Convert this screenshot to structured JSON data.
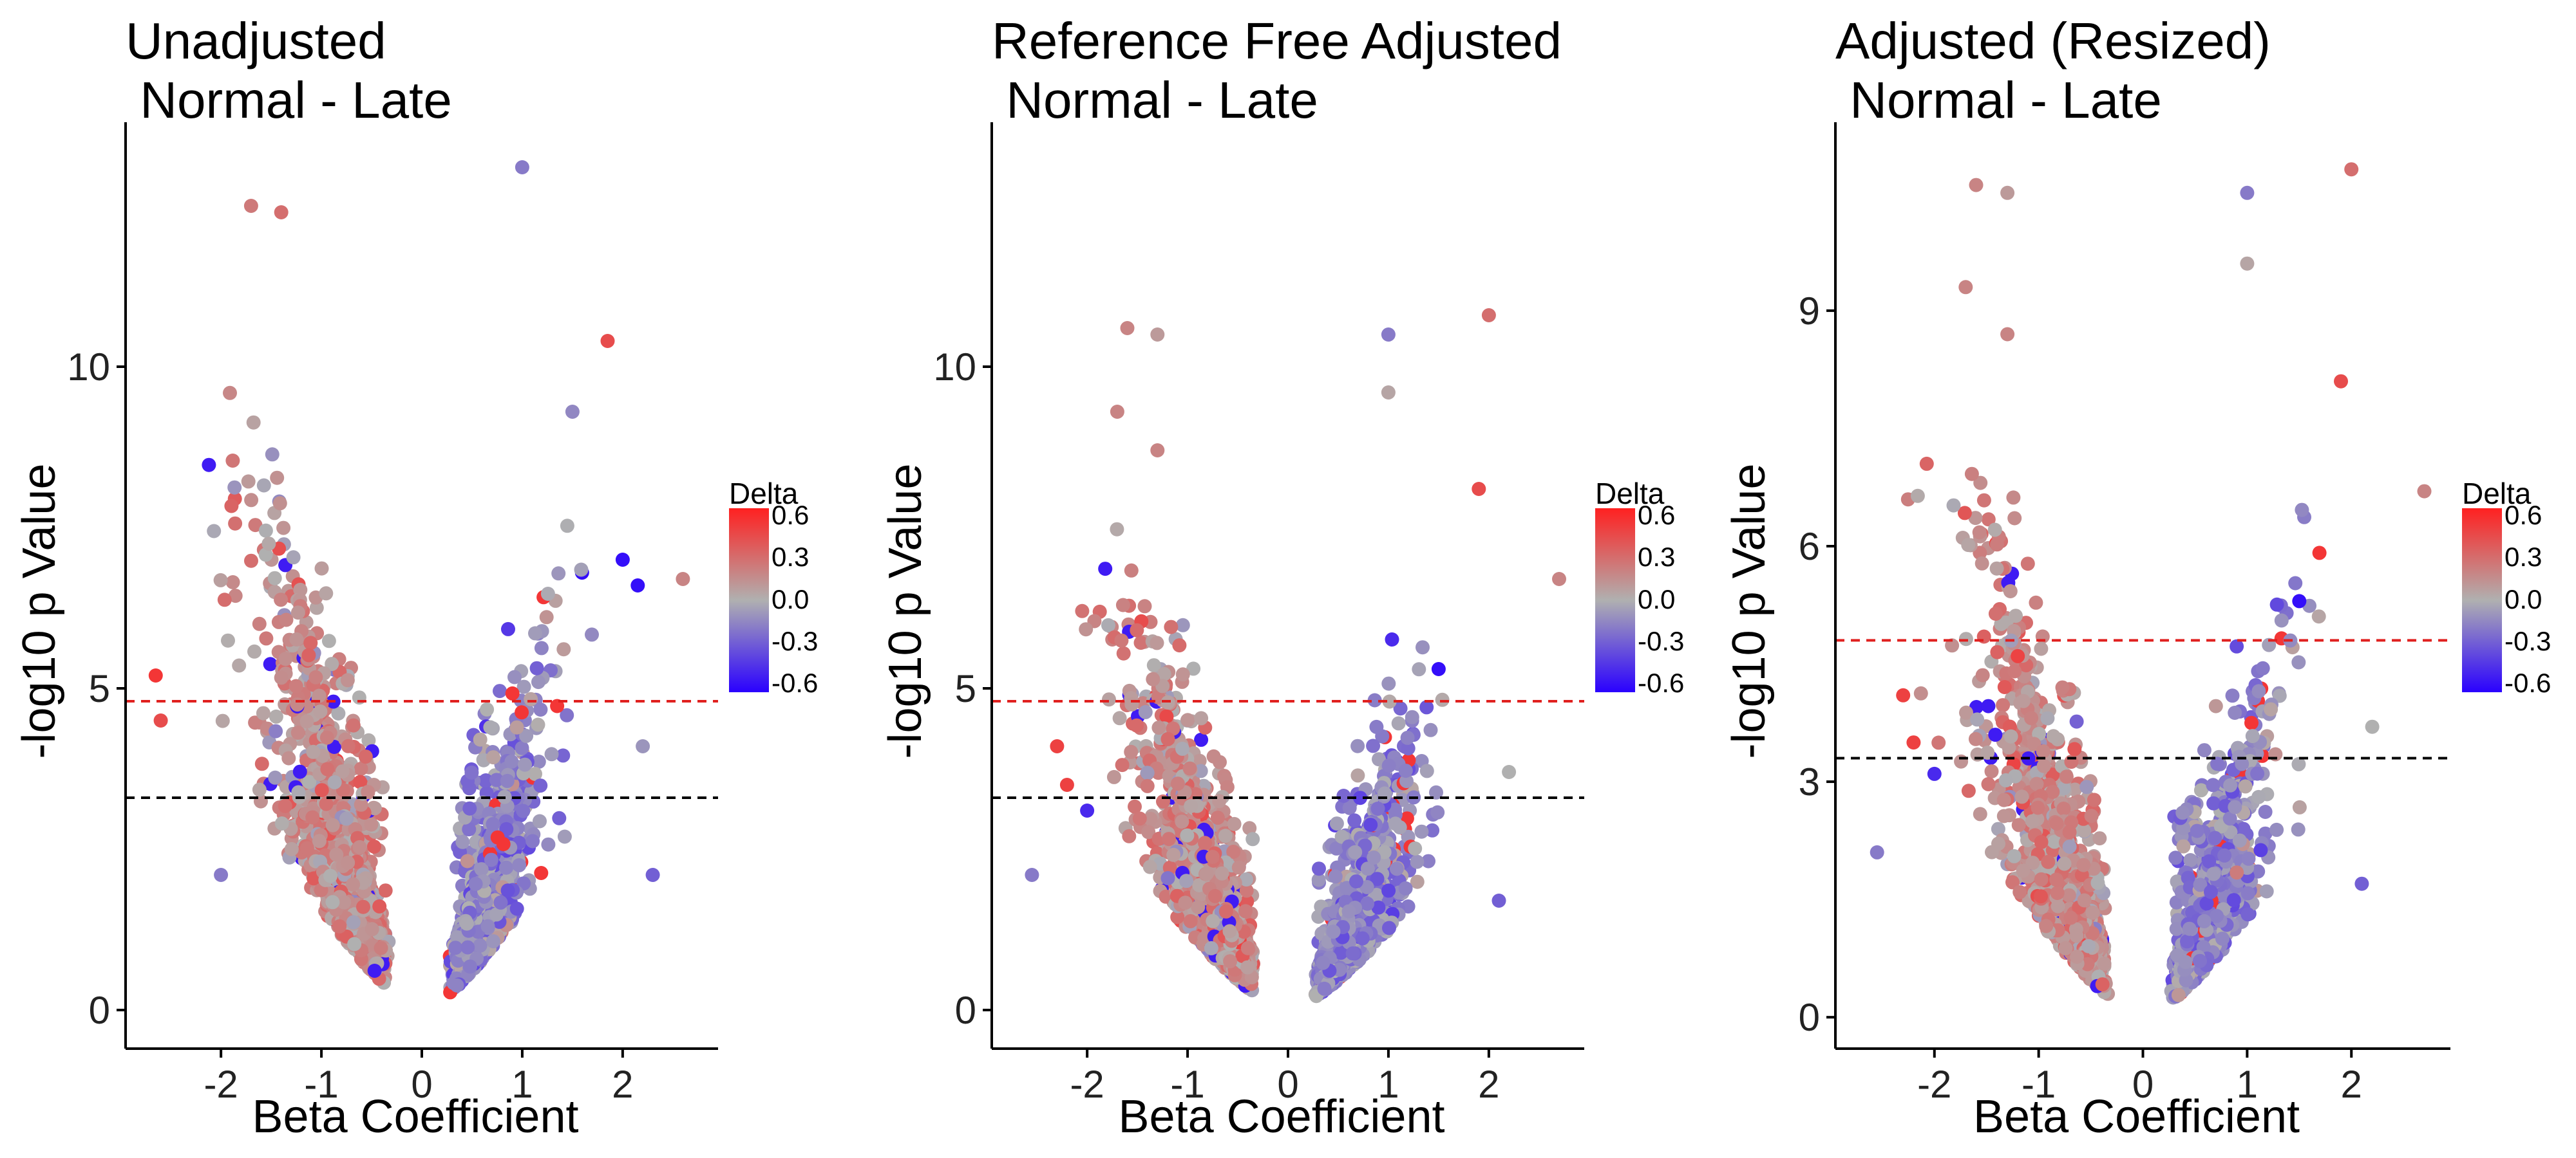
{
  "chart_data": [
    {
      "type": "scatter",
      "title_line1": "Unadjusted",
      "title_line2": " Normal - Late",
      "xlabel": "Beta Coefficient",
      "ylabel": "-log10 p Value",
      "xlim": [
        -2.95,
        2.95
      ],
      "ylim": [
        -0.6,
        13.8
      ],
      "xticks": [
        -2,
        -1,
        0,
        1,
        2
      ],
      "xtick_labels": [
        "-2",
        "-1",
        "0",
        "1",
        "2"
      ],
      "yticks": [
        0,
        5,
        10
      ],
      "ytick_labels": [
        "0",
        "5",
        "10"
      ],
      "hlines": [
        {
          "y": 4.8,
          "color": "#e0201f"
        },
        {
          "y": 3.3,
          "color": "#000000"
        }
      ],
      "legend": {
        "title": "Delta",
        "ticks": [
          "0.6",
          "0.3",
          "0.0",
          "-0.3",
          "-0.6"
        ],
        "low_color": "#2a00ff",
        "mid_color": "#b0b0b0",
        "high_color": "#ff2020"
      },
      "grid": false,
      "seed": 11,
      "spread": 1.0,
      "outliers": [
        [
          1.0,
          13.1,
          -0.2
        ],
        [
          -1.7,
          12.5,
          0.25
        ],
        [
          -1.4,
          12.4,
          0.3
        ],
        [
          1.85,
          10.4,
          0.45
        ],
        [
          -2.65,
          5.2,
          0.55
        ],
        [
          -2.6,
          4.5,
          0.45
        ],
        [
          2.6,
          6.7,
          0.2
        ],
        [
          2.3,
          2.1,
          -0.3
        ],
        [
          2.2,
          4.1,
          -0.1
        ],
        [
          2.0,
          7.0,
          -0.6
        ],
        [
          2.15,
          6.6,
          -0.6
        ],
        [
          1.5,
          9.3,
          -0.15
        ],
        [
          -2.0,
          2.1,
          -0.2
        ]
      ]
    },
    {
      "type": "scatter",
      "title_line1": "Reference Free Adjusted",
      "title_line2": " Normal - Late",
      "xlabel": "Beta Coefficient",
      "ylabel": "-log10 p Value",
      "xlim": [
        -2.95,
        2.95
      ],
      "ylim": [
        -0.6,
        13.8
      ],
      "xticks": [
        -2,
        -1,
        0,
        1,
        2
      ],
      "xtick_labels": [
        "-2",
        "-1",
        "0",
        "1",
        "2"
      ],
      "yticks": [
        0,
        5,
        10
      ],
      "ytick_labels": [
        "0",
        "5",
        "10"
      ],
      "hlines": [
        {
          "y": 4.8,
          "color": "#e0201f"
        },
        {
          "y": 3.3,
          "color": "#000000"
        }
      ],
      "legend": {
        "title": "Delta",
        "ticks": [
          "0.6",
          "0.3",
          "0.0",
          "-0.3",
          "-0.6"
        ],
        "low_color": "#2a00ff",
        "mid_color": "#b0b0b0",
        "high_color": "#ff2020"
      },
      "grid": false,
      "seed": 23,
      "spread": 0.78,
      "outliers": [
        [
          -1.6,
          10.6,
          0.2
        ],
        [
          -1.3,
          10.5,
          0.1
        ],
        [
          1.0,
          10.5,
          -0.2
        ],
        [
          1.0,
          9.6,
          0.05
        ],
        [
          2.0,
          10.8,
          0.3
        ],
        [
          -1.7,
          9.3,
          0.2
        ],
        [
          -1.3,
          8.7,
          0.2
        ],
        [
          2.7,
          6.7,
          0.2
        ],
        [
          1.9,
          8.1,
          0.45
        ],
        [
          1.5,
          5.3,
          -0.6
        ],
        [
          -2.3,
          4.1,
          0.5
        ],
        [
          -2.2,
          3.5,
          0.5
        ],
        [
          -2.0,
          3.1,
          -0.5
        ],
        [
          2.2,
          3.7,
          0.0
        ],
        [
          2.1,
          1.7,
          -0.3
        ],
        [
          -2.55,
          2.1,
          -0.2
        ]
      ]
    },
    {
      "type": "scatter",
      "title_line1": "Adjusted (Resized)",
      "title_line2": " Normal - Late",
      "xlabel": "Beta Coefficient",
      "ylabel": "-log10 p Value",
      "xlim": [
        -2.95,
        2.95
      ],
      "ylim": [
        -0.4,
        11.4
      ],
      "xticks": [
        -2,
        -1,
        0,
        1,
        2
      ],
      "xtick_labels": [
        "-2",
        "-1",
        "0",
        "1",
        "2"
      ],
      "yticks": [
        0,
        3,
        6,
        9
      ],
      "ytick_labels": [
        "0",
        "3",
        "6",
        "9"
      ],
      "hlines": [
        {
          "y": 4.8,
          "color": "#e0201f"
        },
        {
          "y": 3.3,
          "color": "#000000"
        }
      ],
      "legend": {
        "title": "Delta",
        "ticks": [
          "0.6",
          "0.3",
          "0.0",
          "-0.3",
          "-0.6"
        ],
        "low_color": "#2a00ff",
        "mid_color": "#b0b0b0",
        "high_color": "#ff2020"
      },
      "grid": false,
      "seed": 37,
      "spread": 0.78,
      "outliers": [
        [
          -1.6,
          10.6,
          0.2
        ],
        [
          -1.3,
          10.5,
          0.1
        ],
        [
          1.0,
          10.5,
          -0.2
        ],
        [
          1.0,
          9.6,
          0.05
        ],
        [
          2.0,
          10.8,
          0.3
        ],
        [
          -1.7,
          9.3,
          0.2
        ],
        [
          -1.3,
          8.7,
          0.2
        ],
        [
          2.7,
          6.7,
          0.2
        ],
        [
          1.9,
          8.1,
          0.45
        ],
        [
          1.5,
          5.3,
          -0.6
        ],
        [
          -2.3,
          4.1,
          0.5
        ],
        [
          -2.2,
          3.5,
          0.5
        ],
        [
          -2.0,
          3.1,
          -0.5
        ],
        [
          2.2,
          3.7,
          0.0
        ],
        [
          2.1,
          1.7,
          -0.3
        ],
        [
          -2.55,
          2.1,
          -0.2
        ]
      ]
    }
  ]
}
